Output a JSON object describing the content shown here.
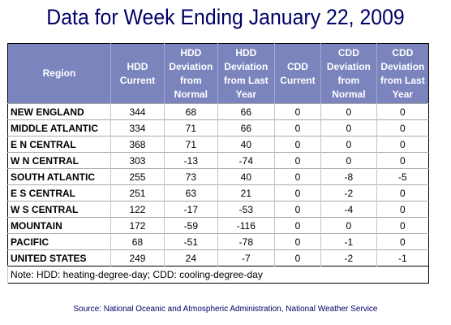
{
  "title": "Data for Week Ending January 22, 2009",
  "table": {
    "headers": [
      "Region",
      "HDD Current",
      "HDD Deviation from Normal",
      "HDD Deviation from Last Year",
      "CDD Current",
      "CDD Deviation from Normal",
      "CDD Deviation from Last Year"
    ],
    "rows": [
      [
        "NEW ENGLAND",
        "344",
        "68",
        "66",
        "0",
        "0",
        "0"
      ],
      [
        "MIDDLE ATLANTIC",
        "334",
        "71",
        "66",
        "0",
        "0",
        "0"
      ],
      [
        "E N CENTRAL",
        "368",
        "71",
        "40",
        "0",
        "0",
        "0"
      ],
      [
        "W N CENTRAL",
        "303",
        "-13",
        "-74",
        "0",
        "0",
        "0"
      ],
      [
        "SOUTH ATLANTIC",
        "255",
        "73",
        "40",
        "0",
        "-8",
        "-5"
      ],
      [
        "E S CENTRAL",
        "251",
        "63",
        "21",
        "0",
        "-2",
        "0"
      ],
      [
        "W S CENTRAL",
        "122",
        "-17",
        "-53",
        "0",
        "-4",
        "0"
      ],
      [
        "MOUNTAIN",
        "172",
        "-59",
        "-116",
        "0",
        "0",
        "0"
      ],
      [
        "PACIFIC",
        "68",
        "-51",
        "-78",
        "0",
        "-1",
        "0"
      ],
      [
        "UNITED STATES",
        "249",
        "24",
        "-7",
        "0",
        "-2",
        "-1"
      ]
    ],
    "note": "Note: HDD: heating-degree-day; CDD: cooling-degree-day"
  },
  "source": "Source:  National Oceanic and Atmospheric Administration, National Weather Service",
  "colors": {
    "title": "#000066",
    "header_bg": "#7b84bd",
    "header_text": "#ffffff"
  }
}
